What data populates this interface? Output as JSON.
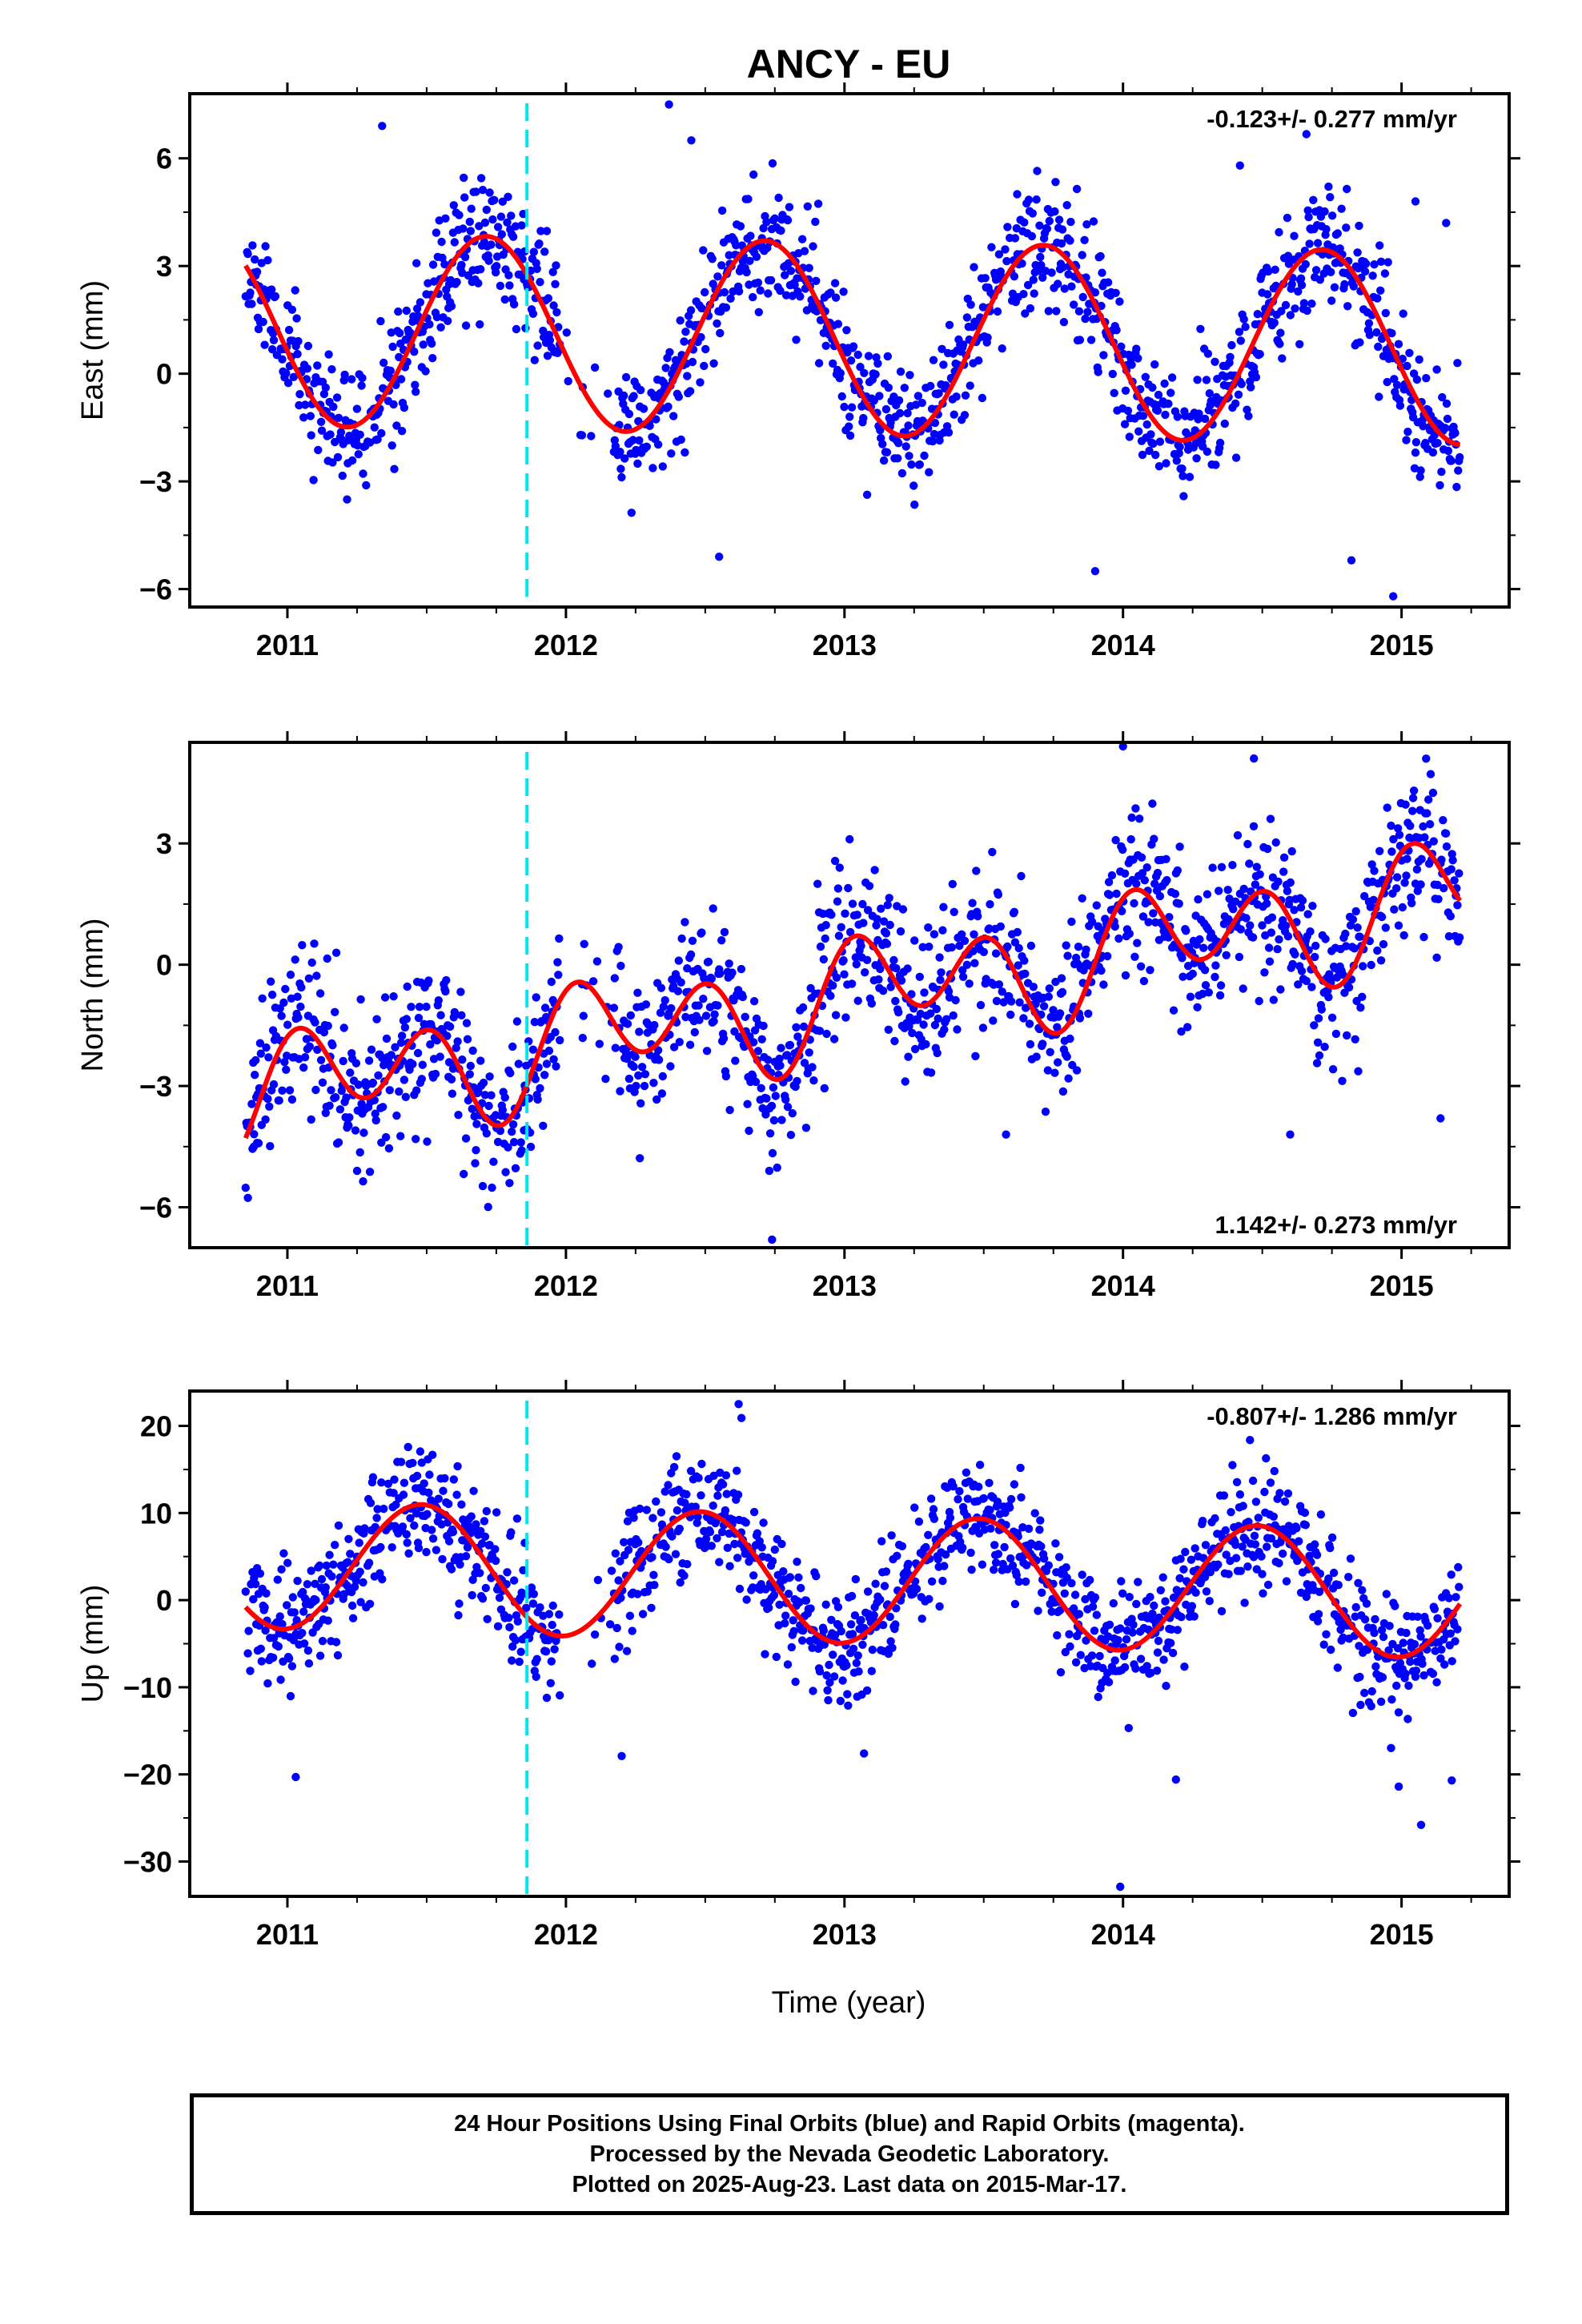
{
  "colors": {
    "final_orbits": "#0000ff",
    "fit_line": "#ff0000",
    "event_marker": "#00e5ee",
    "frame": "#000000"
  },
  "chart_data": {
    "type": "scatter",
    "title": "ANCY - EU",
    "xlabel": "Time (year)",
    "x_ticks": [
      2011,
      2012,
      2013,
      2014,
      2015
    ],
    "xlim": [
      2010.75,
      2015.3
    ],
    "event_marker_x": 2011.86,
    "panels": [
      {
        "id": "east",
        "ylabel": "East (mm)",
        "ylim": [
          -6.5,
          7.8
        ],
        "y_ticks": [
          6,
          3,
          0,
          -3,
          -6
        ],
        "rate": "-0.123+/- 0.277 mm/yr",
        "rate_position": "top-right",
        "fit": {
          "offset": 0.98,
          "trend": -0.123,
          "annual_sin": -2.62,
          "annual_cos": -0.6,
          "semiannual_sin": 0.0,
          "semiannual_cos": 0.0
        },
        "noise_sd": 0.9,
        "seed": 11,
        "outliers": [
          [
            2011.34,
            6.9
          ],
          [
            2012.37,
            7.5
          ],
          [
            2012.45,
            6.5
          ],
          [
            2012.55,
            -5.1
          ],
          [
            2013.62,
            5.0
          ],
          [
            2013.9,
            -5.5
          ],
          [
            2014.42,
            5.8
          ],
          [
            2014.82,
            -5.2
          ],
          [
            2014.97,
            -6.2
          ],
          [
            2015.05,
            4.8
          ],
          [
            2015.16,
            4.2
          ]
        ]
      },
      {
        "id": "north",
        "ylabel": "North (mm)",
        "ylim": [
          -7.0,
          5.5
        ],
        "y_ticks": [
          3,
          0,
          -3,
          -6
        ],
        "rate": "1.142+/- 0.273 mm/yr",
        "rate_position": "bottom-right",
        "fit": {
          "offset": -0.8,
          "trend": 1.142,
          "annual_sin": 0.65,
          "annual_cos": 0.2,
          "semiannual_sin": 0.3,
          "semiannual_cos": 1.1
        },
        "noise_sd": 0.95,
        "seed": 23,
        "outliers": [
          [
            2010.88,
            -4.5
          ],
          [
            2011.25,
            -5.1
          ],
          [
            2012.73,
            -5.1
          ],
          [
            2012.74,
            -6.8
          ],
          [
            2013.58,
            -4.2
          ],
          [
            2014.0,
            5.4
          ],
          [
            2014.47,
            5.1
          ],
          [
            2014.6,
            -4.2
          ],
          [
            2015.14,
            -3.8
          ]
        ]
      },
      {
        "id": "up",
        "ylabel": "Up (mm)",
        "ylim": [
          -34,
          24
        ],
        "y_ticks": [
          20,
          10,
          0,
          -10,
          -20,
          -30
        ],
        "rate": "-0.807+/- 1.286 mm/yr",
        "rate_position": "top-right",
        "fit": {
          "offset": 2.4,
          "trend": -0.807,
          "annual_sin": 0.8,
          "annual_cos": -7.3,
          "semiannual_sin": 0.0,
          "semiannual_cos": 0.0
        },
        "noise_sd": 3.3,
        "seed": 37,
        "outliers": [
          [
            2011.03,
            -20.3
          ],
          [
            2012.2,
            -17.9
          ],
          [
            2012.62,
            22.5
          ],
          [
            2012.63,
            20.9
          ],
          [
            2013.07,
            -17.6
          ],
          [
            2013.99,
            -32.9
          ],
          [
            2014.19,
            -20.6
          ],
          [
            2014.99,
            -21.4
          ],
          [
            2015.07,
            -25.8
          ],
          [
            2015.18,
            -20.7
          ]
        ]
      }
    ],
    "data_start": 2010.85,
    "data_end": 2015.21,
    "data_gap": [
      2011.98,
      2012.17
    ]
  },
  "footer": {
    "line1": "24 Hour Positions Using Final Orbits (blue) and Rapid Orbits (magenta).",
    "line2": "Processed by the Nevada Geodetic Laboratory.",
    "line3": "Plotted on 2025-Aug-23. Last data on 2015-Mar-17."
  }
}
